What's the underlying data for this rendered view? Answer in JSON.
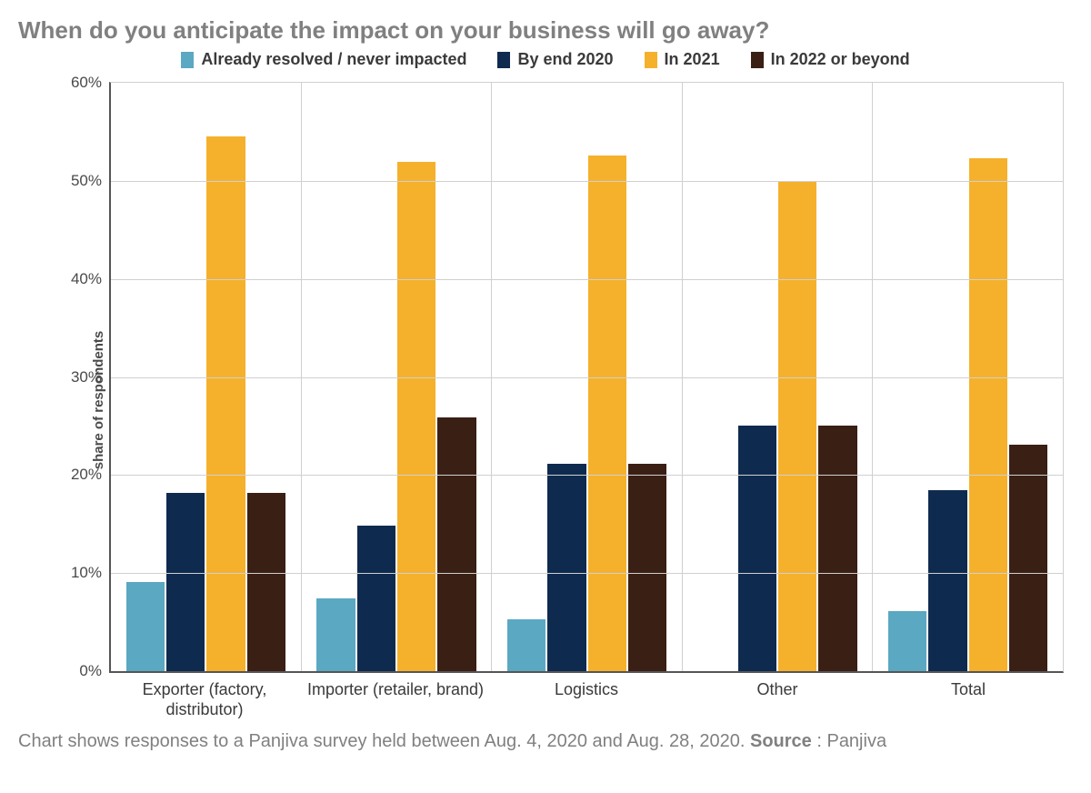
{
  "chart": {
    "type": "bar",
    "title": "When do you anticipate the impact on your business will go away?",
    "title_color": "#808080",
    "title_fontsize": 26,
    "ylabel": "share of respondents",
    "ylabel_fontsize": 15,
    "y_suffix": "%",
    "ylim": [
      0,
      60
    ],
    "ytick_step": 10,
    "yticks": [
      0,
      10,
      20,
      30,
      40,
      50,
      60
    ],
    "background_color": "#ffffff",
    "grid_color": "#d0d0d0",
    "axis_color": "#555555",
    "tick_label_color": "#4a4a4a",
    "tick_label_fontsize": 17,
    "legend_fontsize": 18,
    "x_label_fontsize": 18,
    "bar_group_inner_padding_pct": 8,
    "category_divider_color": "#d0d0d0",
    "categories": [
      "Exporter (factory, distributor)",
      "Importer (retailer, brand)",
      "Logistics",
      "Other",
      "Total"
    ],
    "series": [
      {
        "label": "Already resolved / never impacted",
        "color": "#5ba8c2",
        "values": [
          9.1,
          7.4,
          5.3,
          0.0,
          6.1
        ]
      },
      {
        "label": "By end 2020",
        "color": "#0f2a4f",
        "values": [
          18.2,
          14.8,
          21.1,
          25.0,
          18.5
        ]
      },
      {
        "label": "In 2021",
        "color": "#f5b12c",
        "values": [
          54.5,
          51.9,
          52.6,
          50.0,
          52.3
        ]
      },
      {
        "label": "In 2022 or beyond",
        "color": "#3a1f14",
        "values": [
          18.2,
          25.9,
          21.1,
          25.0,
          23.1
        ]
      }
    ],
    "caption": {
      "text": "Chart shows responses to a Panjiva survey held between Aug. 4, 2020 and Aug. 28, 2020.  ",
      "source_label": "Source",
      "source_value": ": Panjiva",
      "color": "#808080",
      "fontsize": 20
    }
  }
}
